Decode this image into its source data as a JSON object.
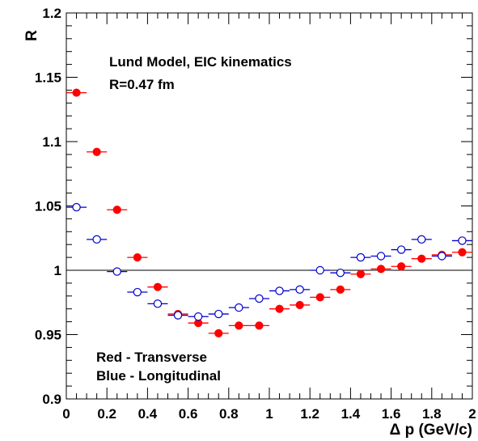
{
  "chart_data": {
    "type": "scatter",
    "xlabel": "Δ p (GeV/c)",
    "ylabel": "R",
    "xlim": [
      0,
      2
    ],
    "ylim": [
      0.9,
      1.2
    ],
    "x_ticks": [
      "0",
      "0.2",
      "0.4",
      "0.6",
      "0.8",
      "1",
      "1.2",
      "1.4",
      "1.6",
      "1.8",
      "2"
    ],
    "y_ticks": [
      "0.9",
      "0.95",
      "1",
      "1.05",
      "1.1",
      "1.15",
      "1.2"
    ],
    "reference_line_y": 1.0,
    "grid": false,
    "annotations": {
      "model": "Lund Model, EIC kinematics",
      "radius": "R=0.47 fm",
      "legend_red": "Red - Transverse",
      "legend_blue": "Blue - Longitudinal"
    },
    "x_halfwidth": 0.05,
    "series": [
      {
        "color": "#ff0000",
        "marker": "filled-circle",
        "x": [
          0.05,
          0.15,
          0.25,
          0.35,
          0.45,
          0.55,
          0.65,
          0.75,
          0.85,
          0.95,
          1.05,
          1.15,
          1.25,
          1.35,
          1.45,
          1.55,
          1.65,
          1.75,
          1.85,
          1.95
        ],
        "y": [
          1.138,
          1.092,
          1.047,
          1.01,
          0.987,
          0.966,
          0.959,
          0.951,
          0.957,
          0.957,
          0.97,
          0.973,
          0.979,
          0.985,
          0.997,
          1.001,
          1.003,
          1.009,
          1.012,
          1.014
        ]
      },
      {
        "color": "#0000cc",
        "marker": "open-circle",
        "x": [
          0.05,
          0.15,
          0.25,
          0.35,
          0.45,
          0.55,
          0.65,
          0.75,
          0.85,
          0.95,
          1.05,
          1.15,
          1.25,
          1.35,
          1.45,
          1.55,
          1.65,
          1.75,
          1.85,
          1.95
        ],
        "y": [
          1.049,
          1.024,
          0.999,
          0.983,
          0.974,
          0.965,
          0.964,
          0.966,
          0.971,
          0.978,
          0.984,
          0.985,
          1.0,
          0.998,
          1.01,
          1.011,
          1.016,
          1.024,
          1.011,
          1.023
        ]
      }
    ]
  }
}
